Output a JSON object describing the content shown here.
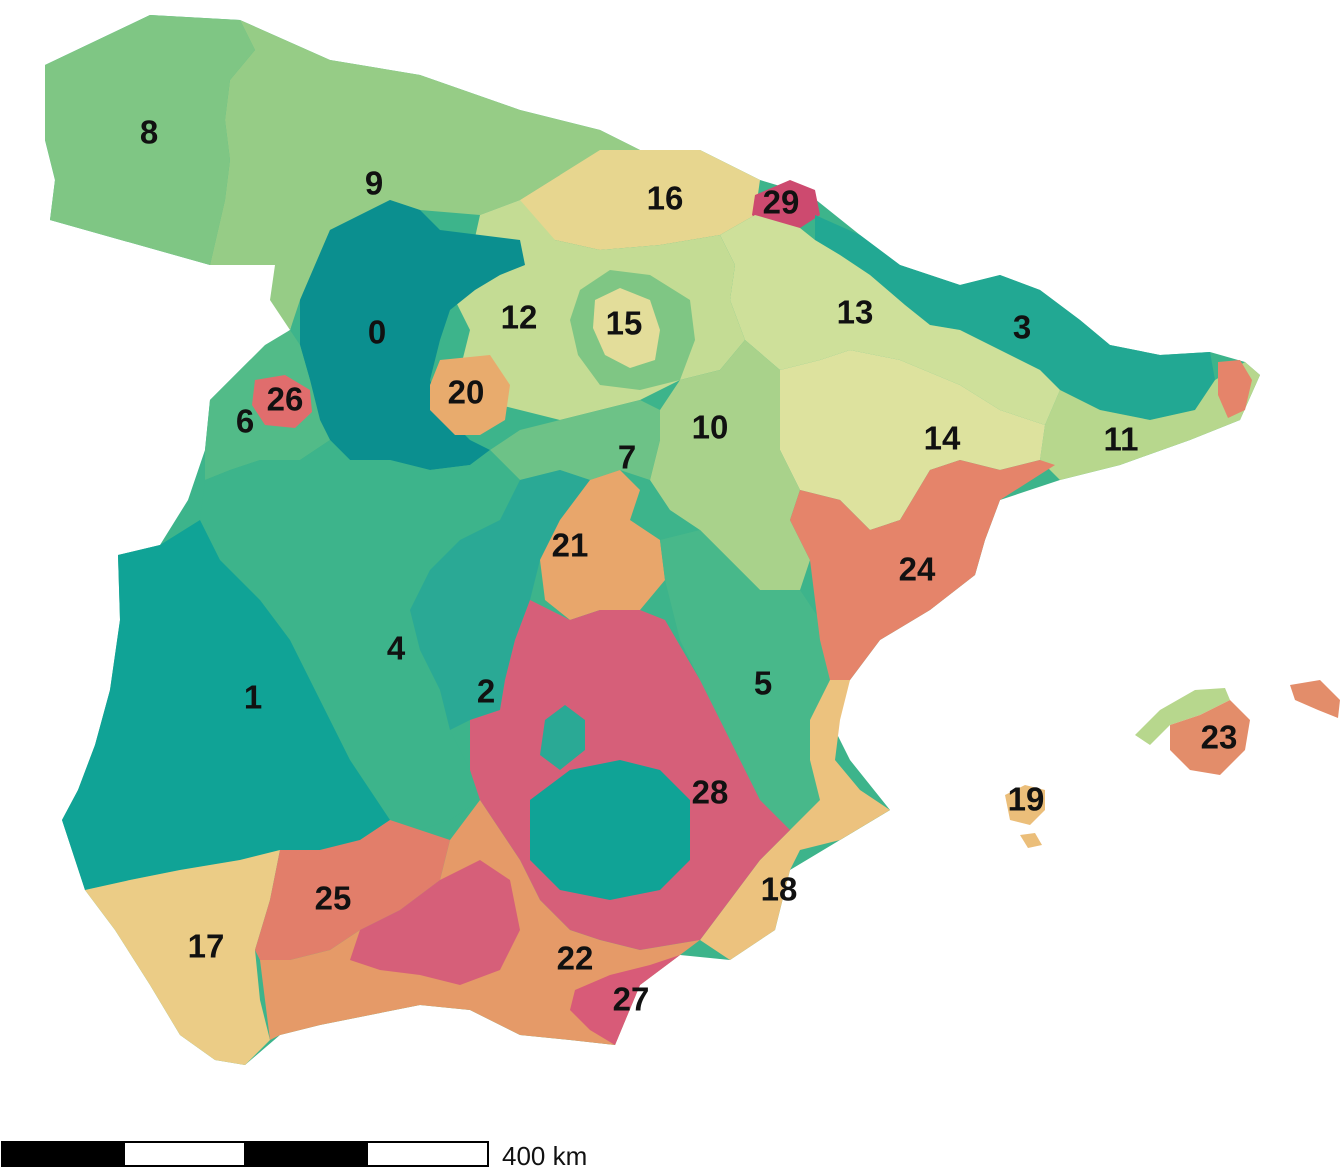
{
  "map": {
    "colors": {
      "teal_dark": "#0b9090",
      "teal": "#10a396",
      "green_teal": "#3db48b",
      "green": "#7cc484",
      "green_light": "#96cc86",
      "yellow_green": "#cfe3a0",
      "yellow": "#e4dc98",
      "sand": "#ebca84",
      "orange": "#e59f6a",
      "salmon": "#e3826c",
      "pink": "#d65f79",
      "magenta": "#cd4a6f",
      "outline_sea": "#ffffff"
    },
    "regions": [
      {
        "id": "0",
        "label": "0",
        "color": "#0b8f8f"
      },
      {
        "id": "1",
        "label": "1",
        "color": "#10a396"
      },
      {
        "id": "2",
        "label": "2",
        "color": "#2aa995"
      },
      {
        "id": "3",
        "label": "3",
        "color": "#22a893"
      },
      {
        "id": "4",
        "label": "4",
        "color": "#3db48b"
      },
      {
        "id": "5",
        "label": "5",
        "color": "#48b88a"
      },
      {
        "id": "6",
        "label": "6",
        "color": "#52bb88"
      },
      {
        "id": "7",
        "label": "7",
        "color": "#6dc287"
      },
      {
        "id": "8",
        "label": "8",
        "color": "#7fc684"
      },
      {
        "id": "9",
        "label": "9",
        "color": "#96cc86"
      },
      {
        "id": "10",
        "label": "10",
        "color": "#a9d28b"
      },
      {
        "id": "11",
        "label": "11",
        "color": "#b7d78d"
      },
      {
        "id": "12",
        "label": "12",
        "color": "#c4dc94"
      },
      {
        "id": "13",
        "label": "13",
        "color": "#cee09a"
      },
      {
        "id": "14",
        "label": "14",
        "color": "#dde29e"
      },
      {
        "id": "15",
        "label": "15",
        "color": "#e3dd9a"
      },
      {
        "id": "16",
        "label": "16",
        "color": "#e7d68f"
      },
      {
        "id": "17",
        "label": "17",
        "color": "#ebcc86"
      },
      {
        "id": "18",
        "label": "18",
        "color": "#ecc27e"
      },
      {
        "id": "19",
        "label": "19",
        "color": "#ebbe7a"
      },
      {
        "id": "20",
        "label": "20",
        "color": "#e8ab6d"
      },
      {
        "id": "21",
        "label": "21",
        "color": "#e8a66b"
      },
      {
        "id": "22",
        "label": "22",
        "color": "#e59a68"
      },
      {
        "id": "23",
        "label": "23",
        "color": "#e38d6a"
      },
      {
        "id": "24",
        "label": "24",
        "color": "#e5846a"
      },
      {
        "id": "25",
        "label": "25",
        "color": "#e27e6a"
      },
      {
        "id": "26",
        "label": "26",
        "color": "#e06d6d"
      },
      {
        "id": "27",
        "label": "27",
        "color": "#d85b78"
      },
      {
        "id": "28",
        "label": "28",
        "color": "#d65f79"
      },
      {
        "id": "29",
        "label": "29",
        "color": "#cd4a6f"
      }
    ],
    "scale_bar": {
      "label": "400 km",
      "segments": [
        "black",
        "white",
        "black",
        "white"
      ]
    }
  }
}
